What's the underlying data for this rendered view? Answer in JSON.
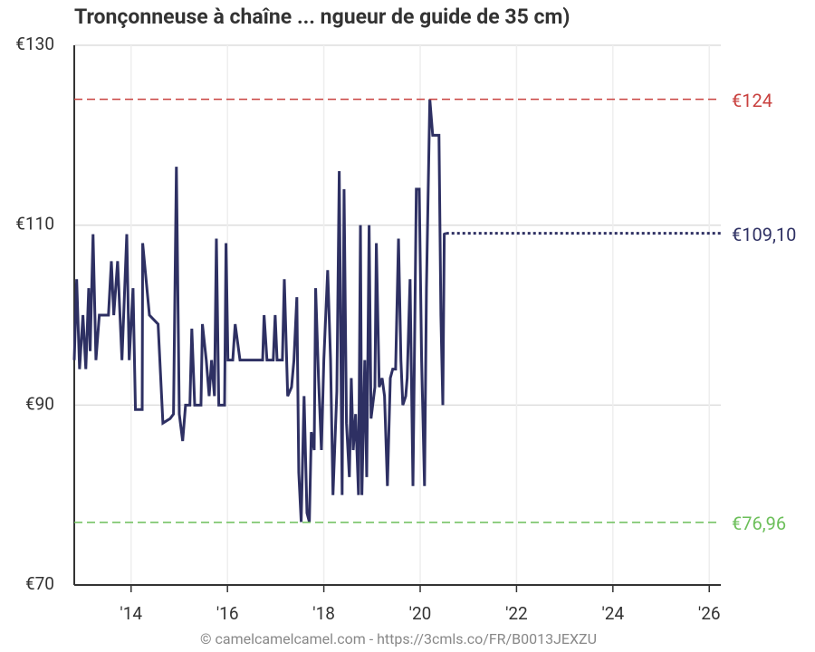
{
  "chart_data": {
    "type": "line",
    "title": "Tronçonneuse à chaîne ... ngueur de guide de 35 cm)",
    "footer": "© camelcamelcamel.com - https://3cmls.co/FR/B0013JEXZU",
    "xlim": [
      2012.82,
      2026.24
    ],
    "xticks": [
      {
        "value": 2014,
        "label": "'14"
      },
      {
        "value": 2016,
        "label": "'16"
      },
      {
        "value": 2018,
        "label": "'18"
      },
      {
        "value": 2020,
        "label": "'20"
      },
      {
        "value": 2022,
        "label": "'22"
      },
      {
        "value": 2024,
        "label": "'24"
      },
      {
        "value": 2026,
        "label": "'26"
      }
    ],
    "ylim": [
      70,
      130
    ],
    "yticks": [
      {
        "value": 70,
        "label": "€70"
      },
      {
        "value": 90,
        "label": "€90"
      },
      {
        "value": 110,
        "label": "€110"
      },
      {
        "value": 130,
        "label": "€130"
      }
    ],
    "grid": true,
    "series": [
      {
        "color": "#2e3063",
        "x": [
          2012.82,
          2012.87,
          2012.93,
          2013.0,
          2013.06,
          2013.12,
          2013.15,
          2013.21,
          2013.27,
          2013.34,
          2013.53,
          2013.59,
          2013.64,
          2013.72,
          2013.81,
          2013.91,
          2013.96,
          2014.04,
          2014.09,
          2014.23,
          2014.24,
          2014.38,
          2014.56,
          2014.66,
          2014.81,
          2014.88,
          2014.94,
          2015.0,
          2015.07,
          2015.13,
          2015.22,
          2015.26,
          2015.32,
          2015.45,
          2015.48,
          2015.56,
          2015.62,
          2015.67,
          2015.73,
          2015.77,
          2015.82,
          2015.94,
          2015.97,
          2016.01,
          2016.11,
          2016.16,
          2016.26,
          2016.5,
          2016.73,
          2016.76,
          2016.82,
          2016.95,
          2016.99,
          2017.03,
          2017.14,
          2017.18,
          2017.25,
          2017.33,
          2017.38,
          2017.44,
          2017.48,
          2017.53,
          2017.59,
          2017.65,
          2017.7,
          2017.74,
          2017.8,
          2017.83,
          2017.89,
          2017.95,
          2018.0,
          2018.08,
          2018.14,
          2018.19,
          2018.27,
          2018.32,
          2018.38,
          2018.42,
          2018.47,
          2018.53,
          2018.57,
          2018.61,
          2018.66,
          2018.72,
          2018.76,
          2018.79,
          2018.85,
          2018.89,
          2018.94,
          2018.98,
          2019.06,
          2019.09,
          2019.15,
          2019.21,
          2019.26,
          2019.32,
          2019.38,
          2019.43,
          2019.49,
          2019.55,
          2019.6,
          2019.64,
          2019.7,
          2019.73,
          2019.79,
          2019.85,
          2019.92,
          2019.98,
          2020.03,
          2020.09,
          2020.13,
          2020.17,
          2020.2,
          2020.26,
          2020.39,
          2020.43,
          2020.47,
          2020.5,
          2020.54
        ],
        "values": [
          95,
          104,
          94,
          100,
          94,
          103,
          96,
          109,
          95,
          100,
          100,
          106,
          100,
          106,
          95,
          109,
          95,
          103,
          89.5,
          89.5,
          108,
          100,
          99,
          88,
          88.5,
          89,
          116.5,
          89,
          86,
          90,
          90,
          98.5,
          90,
          90,
          99,
          95,
          91,
          95,
          91,
          108.5,
          90,
          90,
          108,
          95,
          95,
          99,
          95,
          95,
          95,
          100,
          95,
          95,
          100,
          95,
          95,
          104,
          91,
          92,
          95,
          102,
          82.5,
          77,
          91,
          78,
          77,
          87,
          85,
          103,
          93,
          85,
          95,
          105,
          95,
          80,
          91.5,
          116,
          80,
          114,
          88,
          82,
          93,
          85,
          89,
          80,
          110,
          80,
          95,
          82,
          110,
          88.5,
          92,
          108,
          92,
          93,
          91,
          81,
          93,
          94,
          94,
          108.5,
          95,
          90,
          91,
          93,
          104,
          81,
          114,
          114,
          95,
          81,
          103,
          115,
          124,
          120,
          120,
          100,
          90,
          109,
          109.1
        ]
      }
    ],
    "reference_lines": [
      {
        "value": 124,
        "label": "€124",
        "color": "#c9413f",
        "style": "dashed"
      },
      {
        "value": 109.1,
        "label": "€109,10",
        "color": "#2e3063",
        "style": "dotted"
      },
      {
        "value": 76.96,
        "label": "€76,96",
        "color": "#6cbf5a",
        "style": "dashed"
      }
    ]
  }
}
